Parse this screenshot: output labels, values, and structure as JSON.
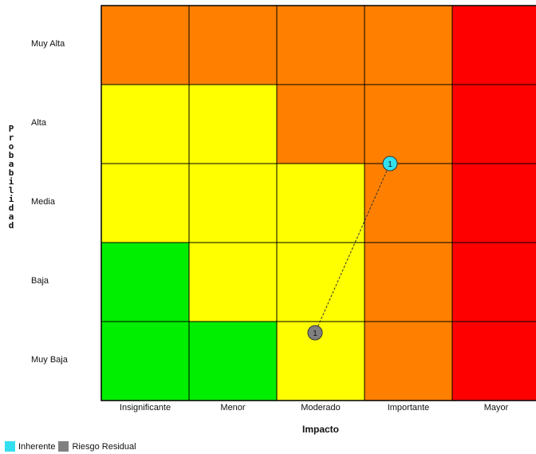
{
  "chart_data": {
    "type": "heatmap",
    "xlabel": "Impacto",
    "ylabel": "Probabilidad",
    "x_categories": [
      "Insignificante",
      "Menor",
      "Moderado",
      "Importante",
      "Mayor"
    ],
    "y_categories": [
      "Muy Alta",
      "Alta",
      "Media",
      "Baja",
      "Muy Baja"
    ],
    "cell_colors": [
      [
        "orange",
        "orange",
        "orange",
        "orange",
        "red"
      ],
      [
        "yellow",
        "yellow",
        "orange",
        "orange",
        "red"
      ],
      [
        "yellow",
        "yellow",
        "yellow",
        "orange",
        "red"
      ],
      [
        "green",
        "yellow",
        "yellow",
        "orange",
        "red"
      ],
      [
        "green",
        "green",
        "yellow",
        "orange",
        "red"
      ]
    ],
    "palette": {
      "green": "#00ee00",
      "yellow": "#ffff00",
      "orange": "#ff8000",
      "red": "#ff0000",
      "grid": "#000000"
    },
    "points": [
      {
        "series": "Inherente",
        "label": "1",
        "impacto": "Importante",
        "probabilidad": "Media",
        "color": "#33e0f0"
      },
      {
        "series": "Riesgo Residual",
        "label": "1",
        "impacto": "Moderado",
        "probabilidad": "Muy Baja",
        "color": "#808080"
      }
    ],
    "connector": "dashed"
  },
  "legend": {
    "items": [
      {
        "name": "Inherente",
        "color": "#33e0f0"
      },
      {
        "name": "Riesgo Residual",
        "color": "#808080"
      }
    ]
  }
}
